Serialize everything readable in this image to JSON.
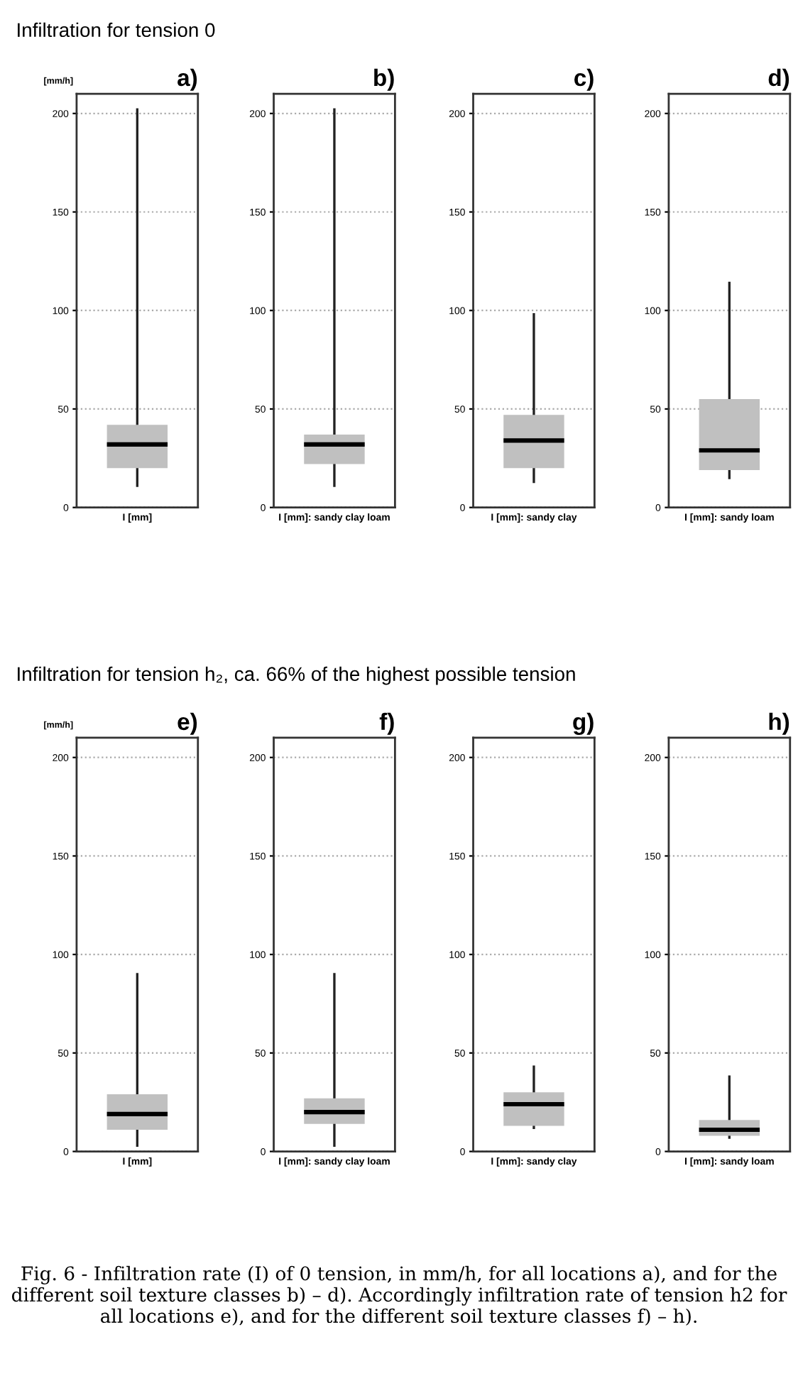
{
  "chart_data": [
    {
      "type": "box",
      "title": "a)",
      "subtitle": "Infiltration for tension 0",
      "ylabel": "[mm/h]",
      "categories": [
        "I [mm]"
      ],
      "series": [
        {
          "color": "#c0c0c0",
          "boxes": [
            {
              "low": 11,
              "q1": 20,
              "median": 32,
              "q3": 42,
              "high": 202
            }
          ]
        }
      ],
      "ylim": [
        0,
        210
      ],
      "yticks": [
        0,
        50,
        100,
        150,
        200
      ],
      "grid": "y"
    },
    {
      "type": "box",
      "title": "b)",
      "categories": [
        "I [mm]: sandy clay loam"
      ],
      "series": [
        {
          "color": "#c0c0c0",
          "boxes": [
            {
              "low": 11,
              "q1": 22,
              "median": 32,
              "q3": 37,
              "high": 202
            }
          ]
        }
      ],
      "ylim": [
        0,
        210
      ],
      "yticks": [
        0,
        50,
        100,
        150,
        200
      ],
      "grid": "y"
    },
    {
      "type": "box",
      "title": "c)",
      "categories": [
        "I [mm]: sandy clay"
      ],
      "series": [
        {
          "color": "#c0c0c0",
          "boxes": [
            {
              "low": 13,
              "q1": 20,
              "median": 34,
              "q3": 47,
              "high": 98
            }
          ]
        }
      ],
      "ylim": [
        0,
        210
      ],
      "yticks": [
        0,
        50,
        100,
        150,
        200
      ],
      "grid": "y"
    },
    {
      "type": "box",
      "title": "d)",
      "categories": [
        "I [mm]: sandy loam"
      ],
      "series": [
        {
          "color": "#c0c0c0",
          "boxes": [
            {
              "low": 15,
              "q1": 19,
              "median": 29,
              "q3": 55,
              "high": 114
            }
          ]
        }
      ],
      "ylim": [
        0,
        210
      ],
      "yticks": [
        0,
        50,
        100,
        150,
        200
      ],
      "grid": "y"
    },
    {
      "type": "box",
      "title": "e)",
      "subtitle": "Infiltration for tension h₂, ca. 66% of the highest possible tension",
      "ylabel": "[mm/h]",
      "categories": [
        "I [mm]"
      ],
      "series": [
        {
          "color": "#c0c0c0",
          "boxes": [
            {
              "low": 3,
              "q1": 11,
              "median": 19,
              "q3": 29,
              "high": 90
            }
          ]
        }
      ],
      "ylim": [
        0,
        210
      ],
      "yticks": [
        0,
        50,
        100,
        150,
        200
      ],
      "grid": "y"
    },
    {
      "type": "box",
      "title": "f)",
      "categories": [
        "I [mm]: sandy clay loam"
      ],
      "series": [
        {
          "color": "#c0c0c0",
          "boxes": [
            {
              "low": 3,
              "q1": 14,
              "median": 20,
              "q3": 27,
              "high": 90
            }
          ]
        }
      ],
      "ylim": [
        0,
        210
      ],
      "yticks": [
        0,
        50,
        100,
        150,
        200
      ],
      "grid": "y"
    },
    {
      "type": "box",
      "title": "g)",
      "categories": [
        "I [mm]: sandy clay"
      ],
      "series": [
        {
          "color": "#c0c0c0",
          "boxes": [
            {
              "low": 12,
              "q1": 13,
              "median": 24,
              "q3": 30,
              "high": 43
            }
          ]
        }
      ],
      "ylim": [
        0,
        210
      ],
      "yticks": [
        0,
        50,
        100,
        150,
        200
      ],
      "grid": "y"
    },
    {
      "type": "box",
      "title": "h)",
      "categories": [
        "I [mm]: sandy loam"
      ],
      "series": [
        {
          "color": "#c0c0c0",
          "boxes": [
            {
              "low": 7,
              "q1": 8,
              "median": 11,
              "q3": 16,
              "high": 38
            }
          ]
        }
      ],
      "ylim": [
        0,
        210
      ],
      "yticks": [
        0,
        50,
        100,
        150,
        200
      ],
      "grid": "y",
      "annotations": [
        "Fig. 6 - Infiltration rate (I) of 0 tension, in mm/h, for all locations a), and for the different soil texture classes b) – d). Accordingly infiltration rate of tension h2 for all locations e), and for the different soil texture classes f) – h)."
      ]
    }
  ]
}
